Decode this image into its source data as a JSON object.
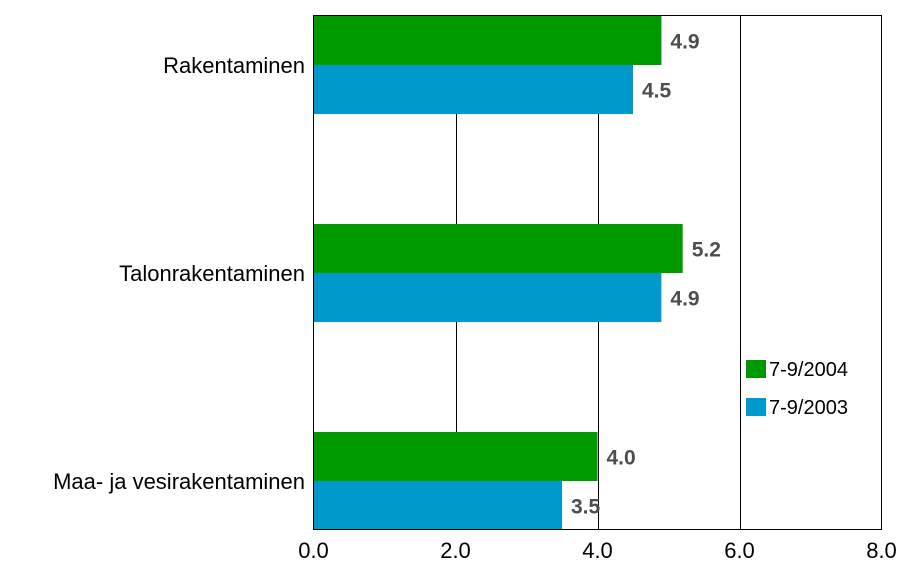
{
  "chart_data": {
    "type": "bar",
    "orientation": "horizontal",
    "title": "",
    "xlabel": "",
    "ylabel": "",
    "categories": [
      "Rakentaminen",
      "Talonrakentaminen",
      "Maa- ja vesirakentaminen"
    ],
    "series": [
      {
        "name": "7-9/2004",
        "color": "#009900",
        "values": [
          4.9,
          5.2,
          4.0
        ],
        "labels": [
          "4.9",
          "5.2",
          "4.0"
        ]
      },
      {
        "name": "7-9/2003",
        "color": "#0099cc",
        "values": [
          4.5,
          4.9,
          3.5
        ],
        "labels": [
          "4.5",
          "4.9",
          "3.5"
        ]
      }
    ],
    "xlim": [
      0,
      8
    ],
    "xticks": [
      "0.0",
      "2.0",
      "4.0",
      "6.0",
      "8.0"
    ],
    "grid": "vertical",
    "legend": "right"
  }
}
